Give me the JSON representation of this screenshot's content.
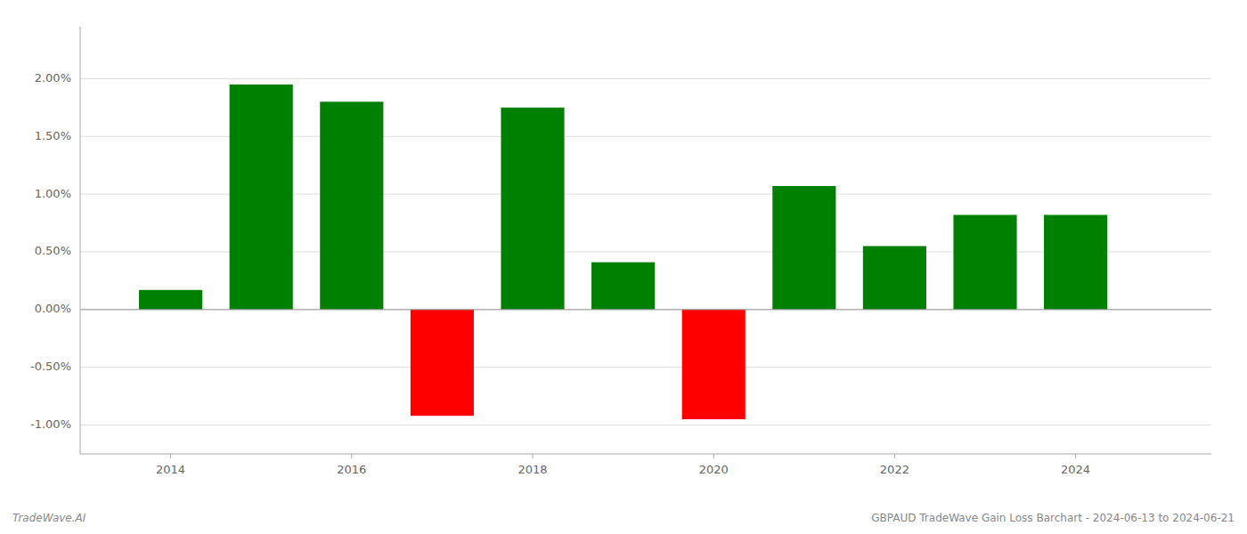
{
  "chart_data": {
    "type": "bar",
    "title": "GBPAUD TradeWave Gain Loss Barchart - 2024-06-13 to 2024-06-21",
    "annotations": [
      "TradeWave.AI"
    ],
    "x": [
      2014,
      2015,
      2016,
      2017,
      2018,
      2019,
      2020,
      2021,
      2022,
      2023,
      2024
    ],
    "values": [
      0.0017,
      0.0195,
      0.018,
      -0.0092,
      0.0175,
      0.0041,
      -0.0095,
      0.0107,
      0.0055,
      0.0082,
      0.0082
    ],
    "colors": [
      "#008000",
      "#008000",
      "#008000",
      "#ff0000",
      "#008000",
      "#008000",
      "#ff0000",
      "#008000",
      "#008000",
      "#008000",
      "#008000"
    ],
    "xlim": [
      2013.0,
      2025.5
    ],
    "xticks": [
      2014,
      2016,
      2018,
      2020,
      2022,
      2024
    ],
    "ylim": [
      -0.0125,
      0.0245
    ],
    "yticks": [
      {
        "value": -0.01,
        "label": "-1.00%"
      },
      {
        "value": -0.005,
        "label": "-0.50%"
      },
      {
        "value": 0.0,
        "label": "0.00%"
      },
      {
        "value": 0.005,
        "label": "0.50%"
      },
      {
        "value": 0.01,
        "label": "1.00%"
      },
      {
        "value": 0.015,
        "label": "1.50%"
      },
      {
        "value": 0.02,
        "label": "2.00%"
      }
    ],
    "grid": true
  }
}
